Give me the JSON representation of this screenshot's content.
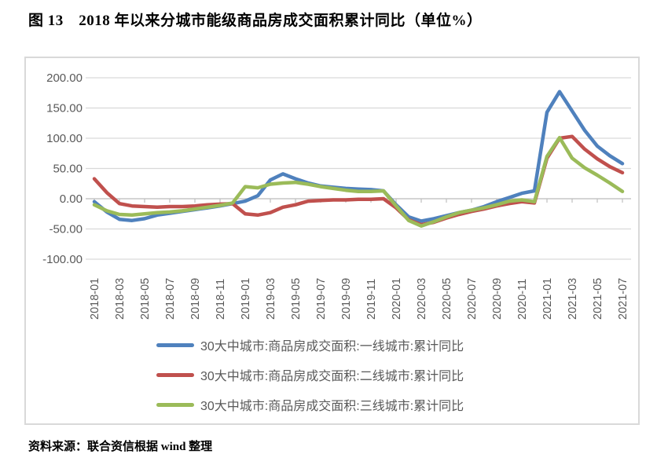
{
  "page": {
    "title": "图 13　2018 年以来分城市能级商品房成交面积累计同比（单位%）",
    "source": "资料来源：联合资信根据 wind 整理"
  },
  "colors": {
    "first_tier": "#4F81BD",
    "second_tier": "#C0504D",
    "third_tier": "#9BBB59",
    "gridline": "#D9D9D9",
    "axis_line": "#BFBFBF",
    "axis_text": "#595959",
    "frame": "#D9D9D9"
  },
  "chart_data": {
    "type": "line",
    "title": "",
    "xlabel": "",
    "ylabel": "",
    "unit": "%",
    "ylim": [
      -100,
      200
    ],
    "grid": true,
    "legend_position": "bottom",
    "y_ticks": [
      200,
      150,
      100,
      50,
      0,
      -50,
      -100
    ],
    "y_tick_labels": [
      "200.00",
      "150.00",
      "100.00",
      "50.00",
      "0.00",
      "-50.00",
      "-100.00"
    ],
    "x": [
      "2018-01",
      "2018-02",
      "2018-03",
      "2018-04",
      "2018-05",
      "2018-06",
      "2018-07",
      "2018-08",
      "2018-09",
      "2018-10",
      "2018-11",
      "2018-12",
      "2019-01",
      "2019-02",
      "2019-03",
      "2019-04",
      "2019-05",
      "2019-06",
      "2019-07",
      "2019-08",
      "2019-09",
      "2019-10",
      "2019-11",
      "2019-12",
      "2020-01",
      "2020-02",
      "2020-03",
      "2020-04",
      "2020-05",
      "2020-06",
      "2020-07",
      "2020-08",
      "2020-09",
      "2020-10",
      "2020-11",
      "2020-12",
      "2021-01",
      "2021-02",
      "2021-03",
      "2021-04",
      "2021-05",
      "2021-06",
      "2021-07"
    ],
    "x_tick_labels": [
      "2018-01",
      "2018-03",
      "2018-05",
      "2018-07",
      "2018-09",
      "2018-11",
      "2019-01",
      "2019-03",
      "2019-05",
      "2019-07",
      "2019-09",
      "2019-11",
      "2020-01",
      "2020-03",
      "2020-05",
      "2020-07",
      "2020-09",
      "2020-11",
      "2021-01",
      "2021-03",
      "2021-05",
      "2021-07"
    ],
    "x_label_every": 2,
    "series": [
      {
        "key": "first-tier",
        "name": "30大中城市:商品房成交面积:一线城市:累计同比",
        "color": "#4F81BD",
        "values": [
          -5,
          -22,
          -34,
          -36,
          -33,
          -27,
          -24,
          -21,
          -18,
          -15,
          -12,
          -8,
          -4,
          5,
          31,
          41,
          33,
          26,
          21,
          19,
          17,
          16,
          15,
          13,
          -10,
          -30,
          -37,
          -33,
          -28,
          -23,
          -19,
          -13,
          -5,
          2,
          9,
          13,
          143,
          177,
          145,
          113,
          87,
          71,
          58
        ]
      },
      {
        "key": "second-tier",
        "name": "30大中城市:商品房成交面积:二线城市:累计同比",
        "color": "#C0504D",
        "values": [
          33,
          10,
          -8,
          -12,
          -13,
          -14,
          -13,
          -13,
          -12,
          -10,
          -9,
          -8,
          -25,
          -27,
          -23,
          -14,
          -10,
          -4,
          -3,
          -2,
          -2,
          -1,
          -1,
          0,
          -15,
          -35,
          -43,
          -39,
          -32,
          -26,
          -21,
          -17,
          -12,
          -8,
          -5,
          -7,
          67,
          100,
          103,
          82,
          66,
          53,
          43
        ]
      },
      {
        "key": "third-tier",
        "name": "30大中城市:商品房成交面积:三线城市:累计同比",
        "color": "#9BBB59",
        "values": [
          -10,
          -20,
          -26,
          -27,
          -25,
          -23,
          -22,
          -20,
          -17,
          -14,
          -11,
          -7,
          20,
          18,
          24,
          26,
          27,
          24,
          20,
          17,
          14,
          12,
          12,
          13,
          -12,
          -36,
          -45,
          -38,
          -30,
          -23,
          -19,
          -15,
          -10,
          -4,
          -2,
          -5,
          70,
          101,
          67,
          51,
          39,
          26,
          12
        ]
      }
    ]
  }
}
